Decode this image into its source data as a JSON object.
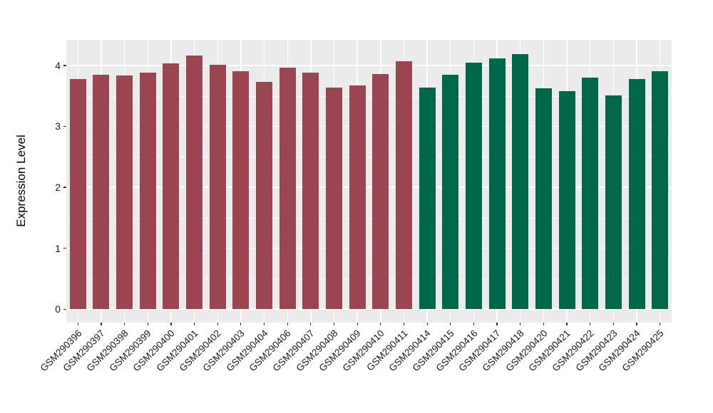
{
  "chart_data": {
    "type": "bar",
    "title": "",
    "xlabel": "",
    "ylabel": "Expression Level",
    "legend": "none",
    "grid": "on",
    "panel_background": "#EBEBEB",
    "grid_color": "#FFFFFF",
    "categories": [
      "GSM290396",
      "GSM290397",
      "GSM290398",
      "GSM290399",
      "GSM290400",
      "GSM290401",
      "GSM290402",
      "GSM290403",
      "GSM290404",
      "GSM290406",
      "GSM290407",
      "GSM290408",
      "GSM290409",
      "GSM290410",
      "GSM290411",
      "GSM290414",
      "GSM290415",
      "GSM290416",
      "GSM290417",
      "GSM290418",
      "GSM290420",
      "GSM290421",
      "GSM290422",
      "GSM290423",
      "GSM290424",
      "GSM290425"
    ],
    "values": [
      3.78,
      3.85,
      3.83,
      3.88,
      4.03,
      4.16,
      4.01,
      3.91,
      3.73,
      3.97,
      3.88,
      3.64,
      3.67,
      3.86,
      4.07,
      3.64,
      3.85,
      4.05,
      4.12,
      4.19,
      3.62,
      3.58,
      3.8,
      3.51,
      3.78,
      3.9
    ],
    "value_groups": [
      0,
      0,
      0,
      0,
      0,
      0,
      0,
      0,
      0,
      0,
      0,
      0,
      0,
      0,
      0,
      1,
      1,
      1,
      1,
      1,
      1,
      1,
      1,
      1,
      1,
      1
    ],
    "group_colors": [
      "#9A4551",
      "#00684A"
    ],
    "y_ticks": [
      "0",
      "1",
      "2",
      "3",
      "4"
    ],
    "y_tick_values": [
      0,
      1,
      2,
      3,
      4
    ],
    "ylim": [
      -0.22,
      4.42
    ]
  }
}
